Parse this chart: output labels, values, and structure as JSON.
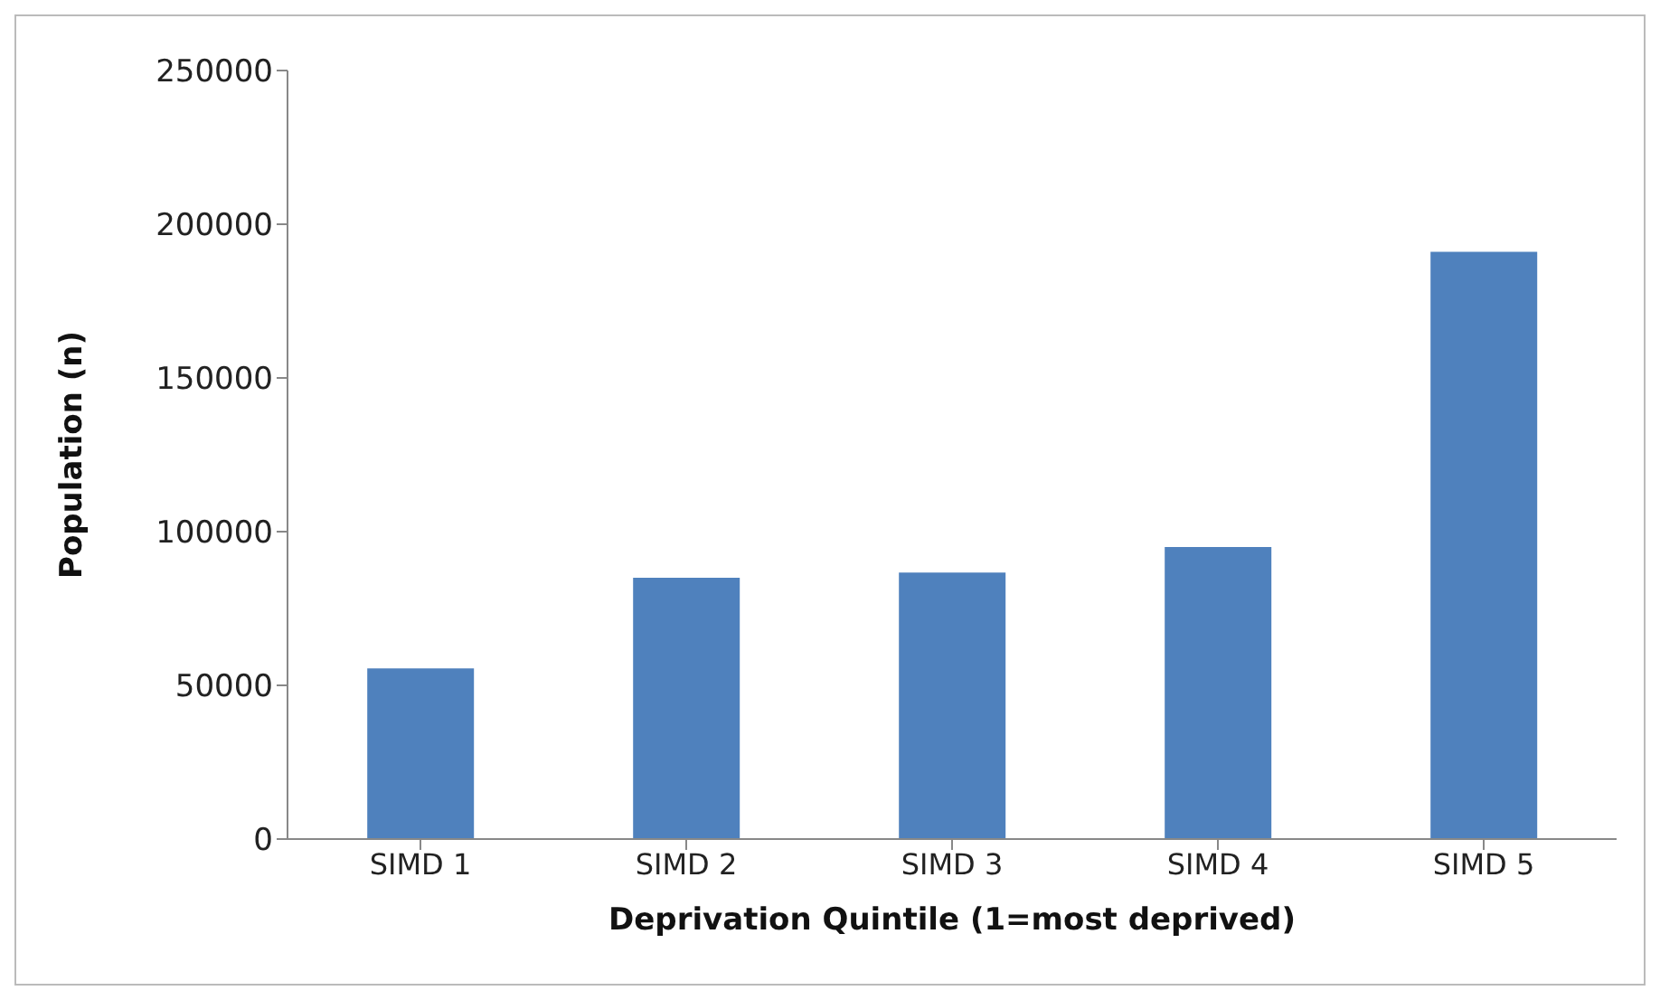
{
  "chart_data": {
    "type": "bar",
    "xlabel": "Deprivation Quintile (1=most deprived)",
    "ylabel": "Population (n)",
    "categories": [
      "SIMD 1",
      "SIMD 2",
      "SIMD 3",
      "SIMD 4",
      "SIMD 5"
    ],
    "values": [
      55500,
      85000,
      86700,
      95000,
      191000
    ],
    "color": "#4f81bd",
    "ylim": [
      0,
      250000
    ],
    "yticks": [
      0,
      50000,
      100000,
      150000,
      200000,
      250000
    ],
    "grid": false
  }
}
